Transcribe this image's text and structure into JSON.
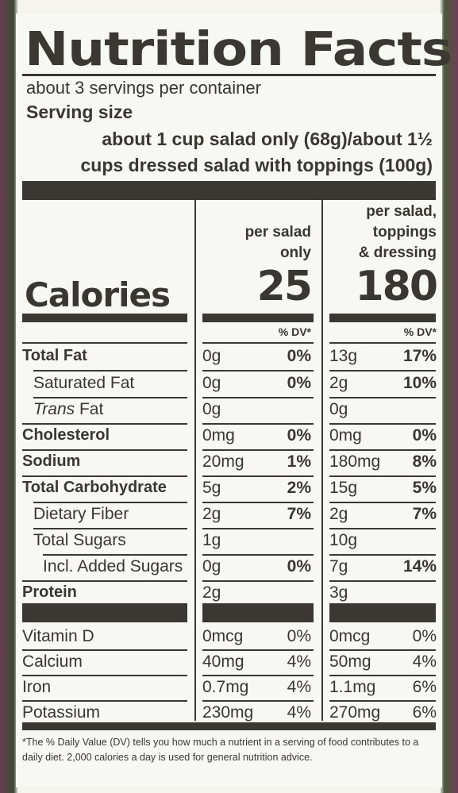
{
  "title": "Nutrition Facts",
  "servings_per_container": "about 3 servings per container",
  "serving_size_label": "Serving size",
  "serving_size_line1": "about 1 cup salad only (68g)/about 1½",
  "serving_size_line2": "cups dressed salad with toppings (100g)",
  "columns": [
    {
      "header_line1": "per salad",
      "header_line2": "only",
      "header_line3": "",
      "calories": "25",
      "dv_header": "% DV*"
    },
    {
      "header_line1": "per salad,",
      "header_line2": "toppings",
      "header_line3": "& dressing",
      "calories": "180",
      "dv_header": "% DV*"
    }
  ],
  "calories_label": "Calories",
  "nutrients": [
    {
      "name": "Total Fat",
      "bold": true,
      "c1_amt": "0g",
      "c1_dv": "0%",
      "c2_amt": "13g",
      "c2_dv": "17%"
    },
    {
      "name": "Saturated Fat",
      "bold": false,
      "c1_amt": "0g",
      "c1_dv": "0%",
      "c2_amt": "2g",
      "c2_dv": "10%"
    },
    {
      "name": "Trans",
      "name_suffix": " Fat",
      "bold": false,
      "c1_amt": "0g",
      "c1_dv": "",
      "c2_amt": "0g",
      "c2_dv": ""
    },
    {
      "name": "Cholesterol",
      "bold": true,
      "c1_amt": "0mg",
      "c1_dv": "0%",
      "c2_amt": "0mg",
      "c2_dv": "0%"
    },
    {
      "name": "Sodium",
      "bold": true,
      "c1_amt": "20mg",
      "c1_dv": "1%",
      "c2_amt": "180mg",
      "c2_dv": "8%"
    },
    {
      "name": "Total Carbohydrate",
      "bold": true,
      "c1_amt": "5g",
      "c1_dv": "2%",
      "c2_amt": "15g",
      "c2_dv": "5%"
    },
    {
      "name": "Dietary Fiber",
      "bold": false,
      "c1_amt": "2g",
      "c1_dv": "7%",
      "c2_amt": "2g",
      "c2_dv": "7%"
    },
    {
      "name": "Total Sugars",
      "bold": false,
      "c1_amt": "1g",
      "c1_dv": "",
      "c2_amt": "10g",
      "c2_dv": ""
    },
    {
      "name": "Incl. Added Sugars",
      "bold": false,
      "c1_amt": "0g",
      "c1_dv": "0%",
      "c2_amt": "7g",
      "c2_dv": "14%"
    },
    {
      "name": "Protein",
      "bold": true,
      "c1_amt": "2g",
      "c1_dv": "",
      "c2_amt": "3g",
      "c2_dv": ""
    }
  ],
  "vitamins": [
    {
      "name": "Vitamin D",
      "c1_amt": "0mcg",
      "c1_dv": "0%",
      "c2_amt": "0mcg",
      "c2_dv": "0%"
    },
    {
      "name": "Calcium",
      "c1_amt": "40mg",
      "c1_dv": "4%",
      "c2_amt": "50mg",
      "c2_dv": "4%"
    },
    {
      "name": "Iron",
      "c1_amt": "0.7mg",
      "c1_dv": "4%",
      "c2_amt": "1.1mg",
      "c2_dv": "6%"
    },
    {
      "name": "Potassium",
      "c1_amt": "230mg",
      "c1_dv": "4%",
      "c2_amt": "270mg",
      "c2_dv": "6%"
    }
  ],
  "footnote": "*The % Daily Value (DV) tells you how much a nutrient in a serving of food contributes to a daily diet. 2,000 calories a day is used for general nutrition advice."
}
